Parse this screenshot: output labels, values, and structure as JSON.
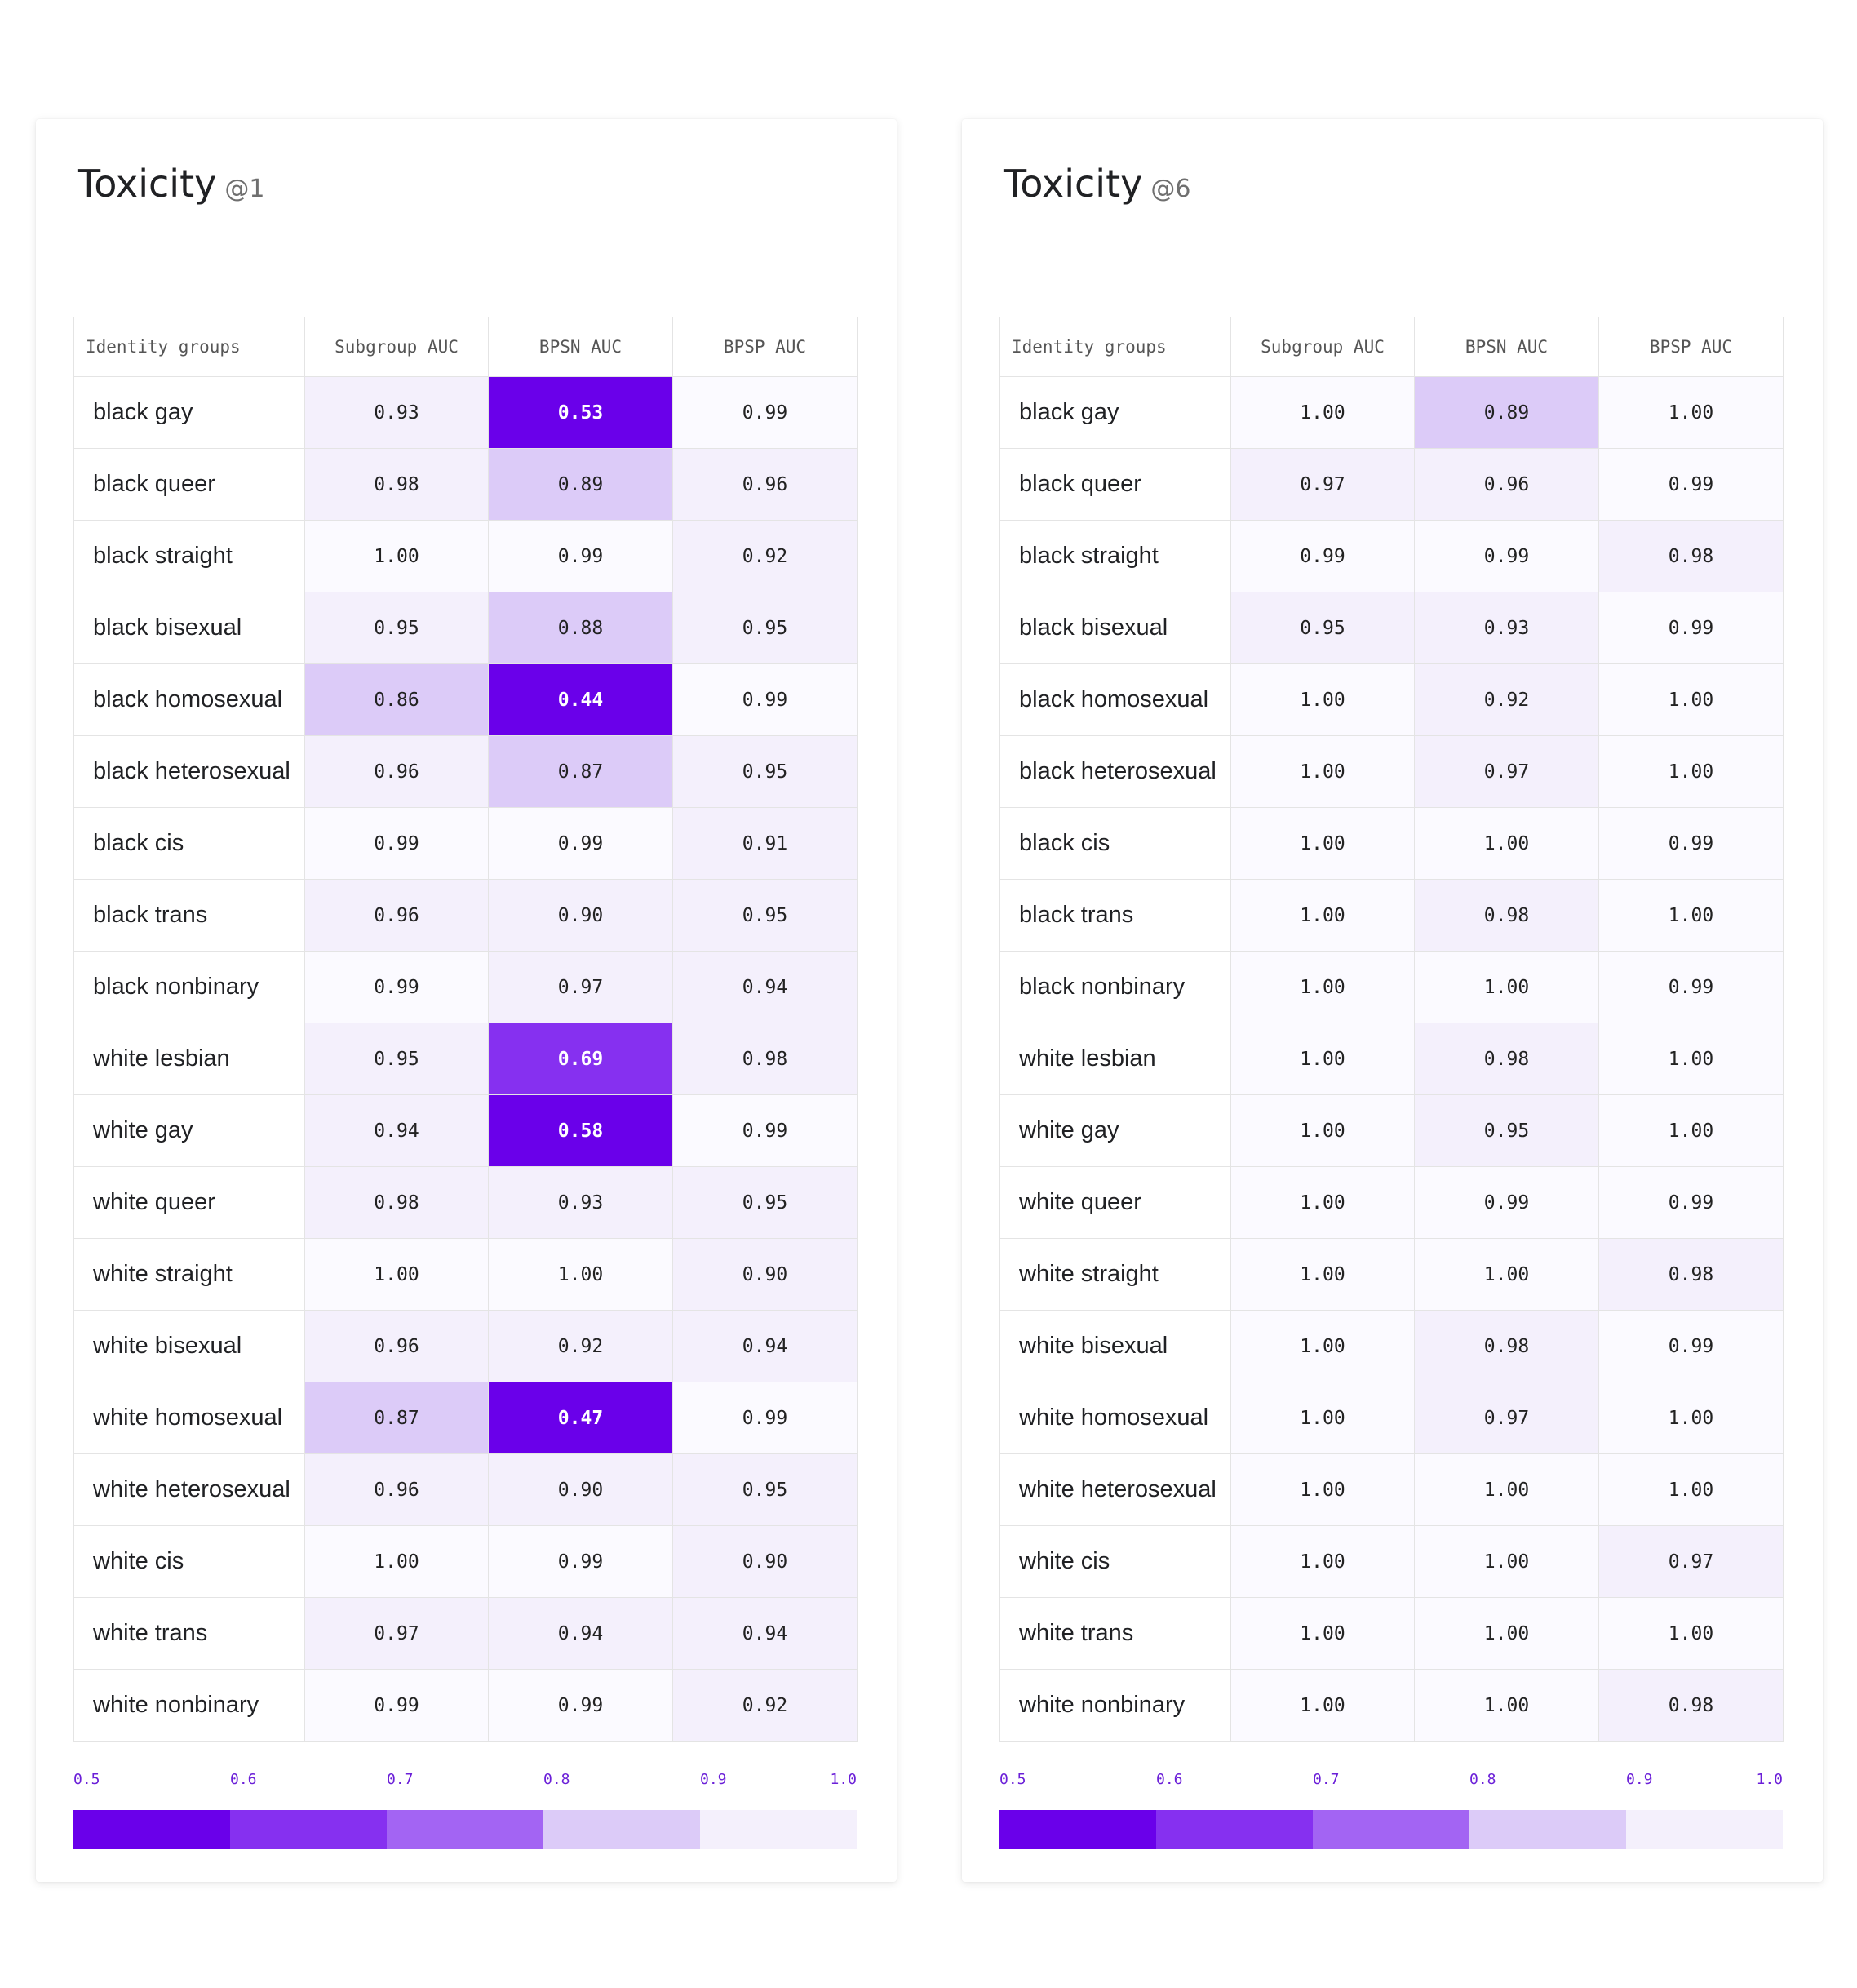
{
  "colors": {
    "scale": [
      "#6a00ea",
      "#8630f0",
      "#a364f3",
      "#dccbf8",
      "#f4f0fc",
      "#fbfaff"
    ],
    "dark_text": "#ffffff"
  },
  "chart_data": [
    {
      "type": "heatmap",
      "title": "Toxicity",
      "subtitle": "@1",
      "columns": [
        "Identity groups",
        "Subgroup AUC",
        "BPSN AUC",
        "BPSP AUC"
      ],
      "rows": [
        {
          "label": "black gay",
          "values": [
            "0.93",
            "0.53",
            "0.99"
          ]
        },
        {
          "label": "black queer",
          "values": [
            "0.98",
            "0.89",
            "0.96"
          ]
        },
        {
          "label": "black straight",
          "values": [
            "1.00",
            "0.99",
            "0.92"
          ]
        },
        {
          "label": "black bisexual",
          "values": [
            "0.95",
            "0.88",
            "0.95"
          ]
        },
        {
          "label": "black homosexual",
          "values": [
            "0.86",
            "0.44",
            "0.99"
          ]
        },
        {
          "label": "black heterosexual",
          "values": [
            "0.96",
            "0.87",
            "0.95"
          ]
        },
        {
          "label": "black cis",
          "values": [
            "0.99",
            "0.99",
            "0.91"
          ]
        },
        {
          "label": "black trans",
          "values": [
            "0.96",
            "0.90",
            "0.95"
          ]
        },
        {
          "label": "black nonbinary",
          "values": [
            "0.99",
            "0.97",
            "0.94"
          ]
        },
        {
          "label": "white lesbian",
          "values": [
            "0.95",
            "0.69",
            "0.98"
          ]
        },
        {
          "label": "white gay",
          "values": [
            "0.94",
            "0.58",
            "0.99"
          ]
        },
        {
          "label": "white queer",
          "values": [
            "0.98",
            "0.93",
            "0.95"
          ]
        },
        {
          "label": "white straight",
          "values": [
            "1.00",
            "1.00",
            "0.90"
          ]
        },
        {
          "label": "white bisexual",
          "values": [
            "0.96",
            "0.92",
            "0.94"
          ]
        },
        {
          "label": "white homosexual",
          "values": [
            "0.87",
            "0.47",
            "0.99"
          ]
        },
        {
          "label": "white heterosexual",
          "values": [
            "0.96",
            "0.90",
            "0.95"
          ]
        },
        {
          "label": "white cis",
          "values": [
            "1.00",
            "0.99",
            "0.90"
          ]
        },
        {
          "label": "white trans",
          "values": [
            "0.97",
            "0.94",
            "0.94"
          ]
        },
        {
          "label": "white nonbinary",
          "values": [
            "0.99",
            "0.99",
            "0.92"
          ]
        }
      ],
      "legend": {
        "ticks": [
          "0.5",
          "0.6",
          "0.7",
          "0.8",
          "0.9",
          "1.0"
        ]
      }
    },
    {
      "type": "heatmap",
      "title": "Toxicity",
      "subtitle": "@6",
      "columns": [
        "Identity groups",
        "Subgroup AUC",
        "BPSN AUC",
        "BPSP AUC"
      ],
      "rows": [
        {
          "label": "black gay",
          "values": [
            "1.00",
            "0.89",
            "1.00"
          ]
        },
        {
          "label": "black queer",
          "values": [
            "0.97",
            "0.96",
            "0.99"
          ]
        },
        {
          "label": "black straight",
          "values": [
            "0.99",
            "0.99",
            "0.98"
          ]
        },
        {
          "label": "black bisexual",
          "values": [
            "0.95",
            "0.93",
            "0.99"
          ]
        },
        {
          "label": "black homosexual",
          "values": [
            "1.00",
            "0.92",
            "1.00"
          ]
        },
        {
          "label": "black heterosexual",
          "values": [
            "1.00",
            "0.97",
            "1.00"
          ]
        },
        {
          "label": "black cis",
          "values": [
            "1.00",
            "1.00",
            "0.99"
          ]
        },
        {
          "label": "black trans",
          "values": [
            "1.00",
            "0.98",
            "1.00"
          ]
        },
        {
          "label": "black nonbinary",
          "values": [
            "1.00",
            "1.00",
            "0.99"
          ]
        },
        {
          "label": "white lesbian",
          "values": [
            "1.00",
            "0.98",
            "1.00"
          ]
        },
        {
          "label": "white gay",
          "values": [
            "1.00",
            "0.95",
            "1.00"
          ]
        },
        {
          "label": "white queer",
          "values": [
            "1.00",
            "0.99",
            "0.99"
          ]
        },
        {
          "label": "white straight",
          "values": [
            "1.00",
            "1.00",
            "0.98"
          ]
        },
        {
          "label": "white bisexual",
          "values": [
            "1.00",
            "0.98",
            "0.99"
          ]
        },
        {
          "label": "white homosexual",
          "values": [
            "1.00",
            "0.97",
            "1.00"
          ]
        },
        {
          "label": "white heterosexual",
          "values": [
            "1.00",
            "1.00",
            "1.00"
          ]
        },
        {
          "label": "white cis",
          "values": [
            "1.00",
            "1.00",
            "0.97"
          ]
        },
        {
          "label": "white trans",
          "values": [
            "1.00",
            "1.00",
            "1.00"
          ]
        },
        {
          "label": "white nonbinary",
          "values": [
            "1.00",
            "1.00",
            "0.98"
          ]
        }
      ],
      "legend": {
        "ticks": [
          "0.5",
          "0.6",
          "0.7",
          "0.8",
          "0.9",
          "1.0"
        ]
      }
    }
  ]
}
